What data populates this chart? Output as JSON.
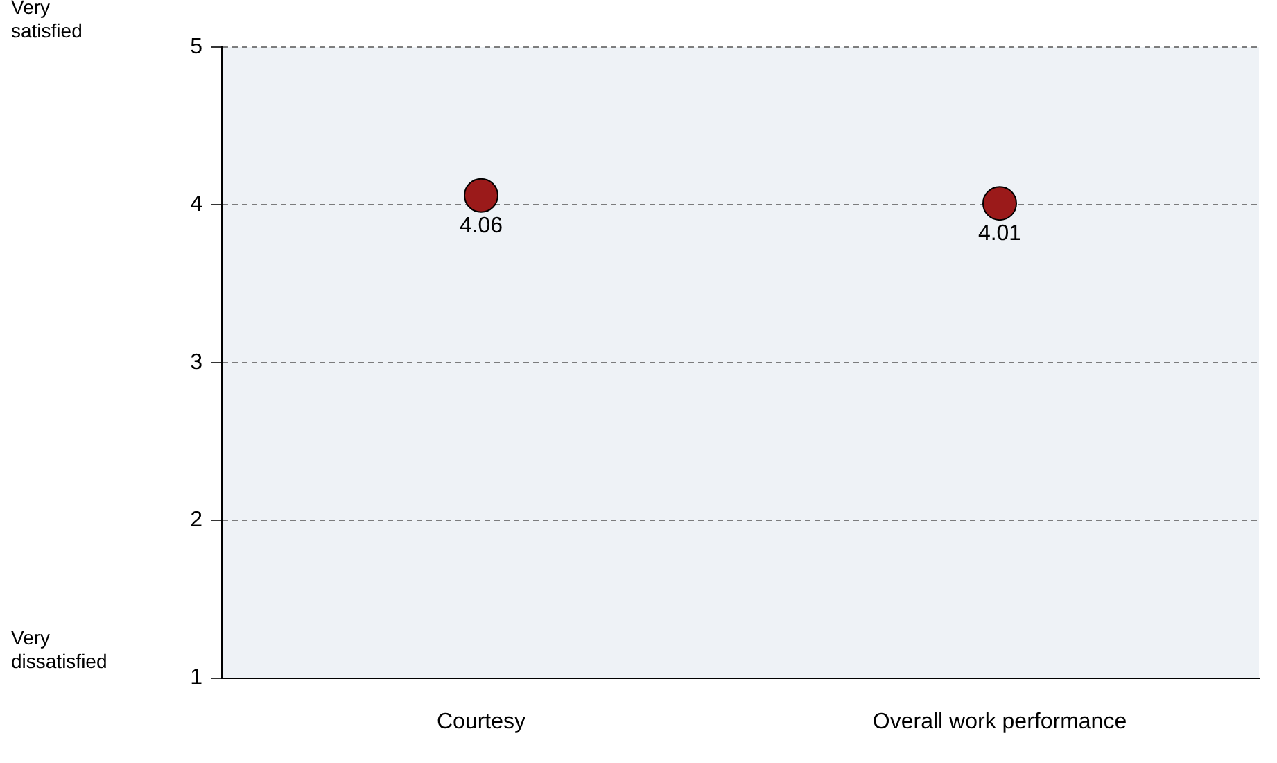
{
  "chart_data": {
    "type": "scatter",
    "categories": [
      "Courtesy",
      "Overall work performance"
    ],
    "series": [
      {
        "color": "#9b1a1a",
        "values": [
          4.06,
          4.01
        ]
      }
    ],
    "ylim": [
      1,
      5
    ],
    "yticks": [
      1,
      2,
      3,
      4,
      5
    ],
    "grid": "y",
    "marker": "circle",
    "data_labels": true,
    "legend": false,
    "annotations": [
      "Very satisfied",
      "Very dissatisfied"
    ]
  }
}
